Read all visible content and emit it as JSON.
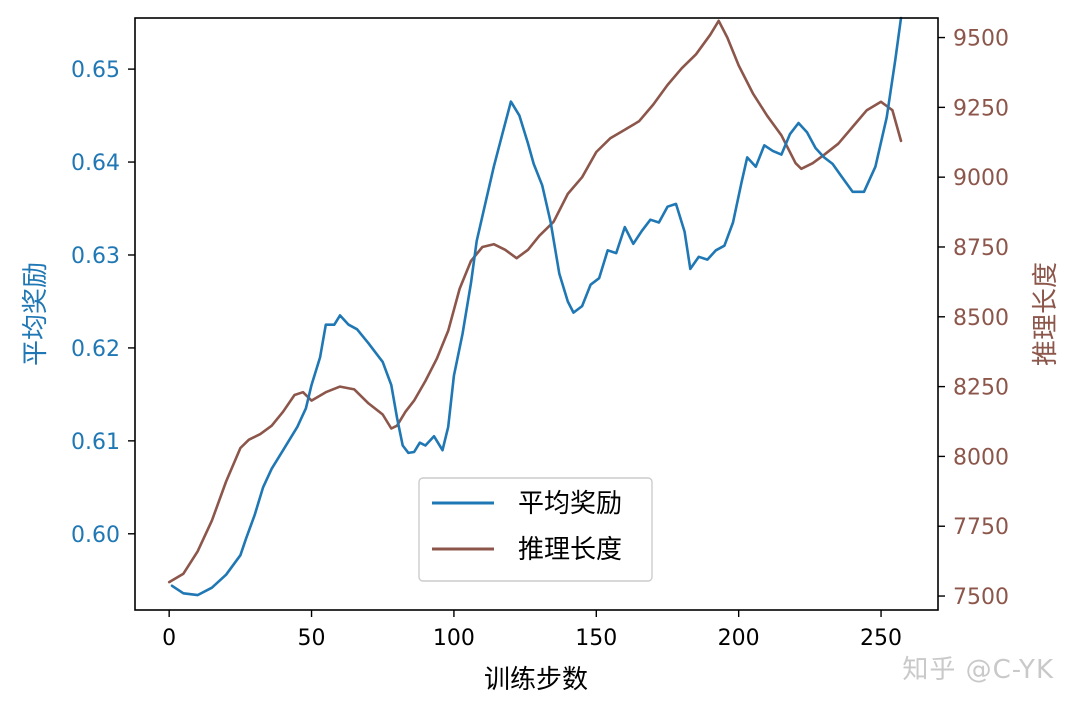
{
  "watermark": "知乎 @C-YK",
  "colors": {
    "reward": "#1f77b4",
    "length": "#8c564b"
  },
  "chart_data": {
    "type": "line",
    "title": "",
    "xlabel": "训练步数",
    "ylabel": "平均奖励",
    "y2label": "推理长度",
    "xlim": [
      -12,
      270
    ],
    "ylim": [
      0.5918,
      0.6555
    ],
    "y2lim": [
      7450,
      9570
    ],
    "xticks": [
      0,
      50,
      100,
      150,
      200,
      250
    ],
    "yticks": [
      0.6,
      0.61,
      0.62,
      0.63,
      0.64,
      0.65
    ],
    "y2ticks": [
      7500,
      7750,
      8000,
      8250,
      8500,
      8750,
      9000,
      9250,
      9500
    ],
    "ytick_labels": [
      "0.60",
      "0.61",
      "0.62",
      "0.63",
      "0.64",
      "0.65"
    ],
    "y2tick_labels": [
      "7500",
      "7750",
      "8000",
      "8250",
      "8500",
      "8750",
      "9000",
      "9250",
      "9500"
    ],
    "legend_position": "lower center",
    "series": [
      {
        "name": "平均奖励",
        "axis": "left",
        "color": "#1f77b4",
        "x": [
          1,
          5,
          10,
          15,
          20,
          25,
          27,
          30,
          33,
          36,
          40,
          45,
          48,
          50,
          53,
          55,
          58,
          60,
          63,
          66,
          70,
          75,
          78,
          80,
          82,
          84,
          86,
          88,
          90,
          93,
          96,
          98,
          100,
          103,
          106,
          108,
          111,
          114,
          117,
          120,
          123,
          126,
          128,
          131,
          134,
          137,
          140,
          142,
          145,
          148,
          151,
          154,
          157,
          160,
          163,
          166,
          169,
          172,
          175,
          178,
          181,
          183,
          186,
          189,
          192,
          195,
          198,
          201,
          203,
          206,
          209,
          212,
          215,
          218,
          221,
          224,
          227,
          230,
          233,
          236,
          240,
          244,
          248,
          252,
          255,
          257
        ],
        "y": [
          0.5944,
          0.5936,
          0.5934,
          0.5942,
          0.5956,
          0.5977,
          0.5995,
          0.602,
          0.605,
          0.607,
          0.609,
          0.6115,
          0.6135,
          0.616,
          0.619,
          0.6225,
          0.6225,
          0.6235,
          0.6225,
          0.622,
          0.6205,
          0.6185,
          0.616,
          0.6125,
          0.6095,
          0.6087,
          0.6088,
          0.6098,
          0.6095,
          0.6105,
          0.609,
          0.6115,
          0.617,
          0.6215,
          0.627,
          0.6315,
          0.6355,
          0.6395,
          0.643,
          0.6465,
          0.645,
          0.642,
          0.6398,
          0.6375,
          0.6335,
          0.628,
          0.625,
          0.6238,
          0.6245,
          0.6268,
          0.6275,
          0.6305,
          0.6302,
          0.633,
          0.6312,
          0.6326,
          0.6338,
          0.6335,
          0.6352,
          0.6355,
          0.6325,
          0.6285,
          0.6298,
          0.6295,
          0.6305,
          0.631,
          0.6335,
          0.6378,
          0.6405,
          0.6395,
          0.6418,
          0.6412,
          0.6408,
          0.643,
          0.6442,
          0.6432,
          0.6415,
          0.6405,
          0.6398,
          0.6385,
          0.6368,
          0.6368,
          0.6395,
          0.6448,
          0.651,
          0.6555
        ]
      },
      {
        "name": "推理长度",
        "axis": "right",
        "color": "#8c564b",
        "x": [
          0,
          5,
          10,
          15,
          20,
          25,
          28,
          32,
          36,
          40,
          44,
          47,
          50,
          55,
          60,
          65,
          70,
          75,
          78,
          80,
          83,
          86,
          90,
          94,
          98,
          102,
          106,
          110,
          114,
          118,
          122,
          126,
          130,
          135,
          140,
          145,
          150,
          155,
          160,
          165,
          170,
          175,
          180,
          185,
          190,
          193,
          196,
          200,
          205,
          210,
          215,
          220,
          222,
          226,
          230,
          235,
          240,
          245,
          250,
          254,
          257
        ],
        "y": [
          7550,
          7580,
          7660,
          7770,
          7910,
          8030,
          8060,
          8080,
          8110,
          8160,
          8220,
          8230,
          8200,
          8230,
          8250,
          8240,
          8190,
          8150,
          8100,
          8110,
          8160,
          8200,
          8270,
          8350,
          8450,
          8600,
          8700,
          8750,
          8760,
          8740,
          8710,
          8740,
          8790,
          8840,
          8940,
          9000,
          9090,
          9140,
          9170,
          9200,
          9260,
          9330,
          9390,
          9440,
          9510,
          9560,
          9500,
          9400,
          9300,
          9220,
          9150,
          9050,
          9030,
          9050,
          9080,
          9120,
          9180,
          9240,
          9270,
          9240,
          9130
        ]
      }
    ]
  }
}
